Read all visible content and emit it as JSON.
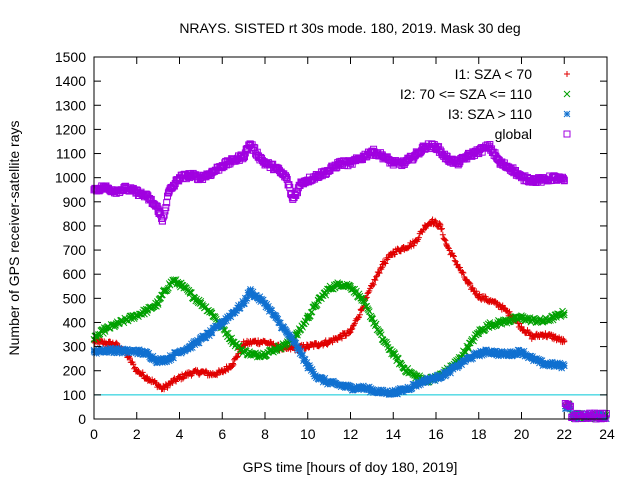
{
  "chart_data": {
    "type": "scatter",
    "title": "NRAYS. SISTED rt 30s mode. 180, 2019. Mask 30 deg",
    "xlabel": "GPS time [hours of doy 180, 2019]",
    "ylabel": "Number of GPS receiver-satellite rays",
    "xlim": [
      0,
      24
    ],
    "ylim": [
      0,
      1500
    ],
    "x_ticks": [
      "0",
      "2",
      "4",
      "6",
      "8",
      "10",
      "12",
      "14",
      "16",
      "18",
      "20",
      "22",
      "24"
    ],
    "y_ticks": [
      "0",
      "100",
      "200",
      "300",
      "400",
      "500",
      "600",
      "700",
      "800",
      "900",
      "1000",
      "1100",
      "1200",
      "1300",
      "1400",
      "1500"
    ],
    "legend_position": "top-right",
    "reference_line": {
      "y": 100,
      "color": "#00c8d8"
    },
    "series": [
      {
        "name": "I1: SZA < 70",
        "marker": "+",
        "color": "#e00000",
        "points": [
          [
            0,
            320
          ],
          [
            1,
            310
          ],
          [
            1.5,
            270
          ],
          [
            2,
            200
          ],
          [
            2.5,
            170
          ],
          [
            3,
            140
          ],
          [
            3.2,
            125
          ],
          [
            3.6,
            150
          ],
          [
            4,
            170
          ],
          [
            4.5,
            190
          ],
          [
            5,
            195
          ],
          [
            5.5,
            185
          ],
          [
            6,
            195
          ],
          [
            6.5,
            230
          ],
          [
            7,
            310
          ],
          [
            7.5,
            320
          ],
          [
            8,
            320
          ],
          [
            8.5,
            300
          ],
          [
            9,
            290
          ],
          [
            9.5,
            295
          ],
          [
            10,
            300
          ],
          [
            10.5,
            310
          ],
          [
            11,
            320
          ],
          [
            11.5,
            340
          ],
          [
            12,
            360
          ],
          [
            12.5,
            450
          ],
          [
            13,
            550
          ],
          [
            13.5,
            640
          ],
          [
            14,
            690
          ],
          [
            14.5,
            710
          ],
          [
            15,
            730
          ],
          [
            15.5,
            800
          ],
          [
            15.8,
            820
          ],
          [
            16.2,
            800
          ],
          [
            16.5,
            720
          ],
          [
            17,
            640
          ],
          [
            17.5,
            560
          ],
          [
            18,
            510
          ],
          [
            18.5,
            490
          ],
          [
            19,
            470
          ],
          [
            19.5,
            430
          ],
          [
            20,
            380
          ],
          [
            20.5,
            340
          ],
          [
            21,
            350
          ],
          [
            21.5,
            340
          ],
          [
            22,
            320
          ]
        ]
      },
      {
        "name": "I2: 70 <= SZA <= 110",
        "marker": "x",
        "color": "#00a000",
        "points": [
          [
            0,
            330
          ],
          [
            0.5,
            370
          ],
          [
            1,
            390
          ],
          [
            1.5,
            410
          ],
          [
            2,
            430
          ],
          [
            2.5,
            450
          ],
          [
            3,
            480
          ],
          [
            3.3,
            530
          ],
          [
            3.7,
            575
          ],
          [
            4,
            560
          ],
          [
            4.5,
            520
          ],
          [
            5,
            480
          ],
          [
            5.5,
            440
          ],
          [
            6,
            380
          ],
          [
            6.5,
            320
          ],
          [
            7,
            280
          ],
          [
            7.5,
            265
          ],
          [
            8,
            270
          ],
          [
            8.5,
            290
          ],
          [
            9,
            310
          ],
          [
            9.5,
            350
          ],
          [
            10,
            420
          ],
          [
            10.5,
            490
          ],
          [
            11,
            540
          ],
          [
            11.5,
            560
          ],
          [
            12,
            550
          ],
          [
            12.5,
            500
          ],
          [
            13,
            420
          ],
          [
            13.5,
            330
          ],
          [
            14,
            270
          ],
          [
            14.5,
            210
          ],
          [
            15,
            180
          ],
          [
            15.5,
            160
          ],
          [
            16,
            170
          ],
          [
            16.5,
            200
          ],
          [
            17,
            240
          ],
          [
            17.5,
            300
          ],
          [
            18,
            360
          ],
          [
            18.5,
            390
          ],
          [
            19,
            400
          ],
          [
            19.5,
            410
          ],
          [
            20,
            420
          ],
          [
            20.5,
            410
          ],
          [
            21,
            405
          ],
          [
            21.5,
            420
          ],
          [
            22,
            440
          ]
        ]
      },
      {
        "name": "I3: SZA > 110",
        "marker": "*",
        "color": "#1070d0",
        "points": [
          [
            0,
            280
          ],
          [
            0.5,
            285
          ],
          [
            1,
            285
          ],
          [
            1.5,
            280
          ],
          [
            2,
            280
          ],
          [
            2.5,
            270
          ],
          [
            3,
            240
          ],
          [
            3.5,
            250
          ],
          [
            4,
            280
          ],
          [
            4.5,
            300
          ],
          [
            5,
            330
          ],
          [
            5.5,
            360
          ],
          [
            6,
            400
          ],
          [
            6.5,
            440
          ],
          [
            7,
            480
          ],
          [
            7.3,
            530
          ],
          [
            7.7,
            500
          ],
          [
            8,
            480
          ],
          [
            8.5,
            420
          ],
          [
            9,
            360
          ],
          [
            9.5,
            300
          ],
          [
            10,
            220
          ],
          [
            10.5,
            170
          ],
          [
            11,
            150
          ],
          [
            11.5,
            140
          ],
          [
            12,
            130
          ],
          [
            12.5,
            130
          ],
          [
            13,
            120
          ],
          [
            13.5,
            110
          ],
          [
            14,
            110
          ],
          [
            14.5,
            120
          ],
          [
            15,
            140
          ],
          [
            15.5,
            160
          ],
          [
            16,
            170
          ],
          [
            16.5,
            190
          ],
          [
            17,
            220
          ],
          [
            17.5,
            250
          ],
          [
            18,
            270
          ],
          [
            18.5,
            280
          ],
          [
            19,
            270
          ],
          [
            19.5,
            270
          ],
          [
            20,
            280
          ],
          [
            20.5,
            250
          ],
          [
            21,
            230
          ],
          [
            21.5,
            225
          ],
          [
            22,
            220
          ]
        ]
      },
      {
        "name": "global",
        "marker": "square",
        "color": "#a000e0",
        "points": [
          [
            0,
            950
          ],
          [
            0.5,
            960
          ],
          [
            1,
            945
          ],
          [
            1.5,
            955
          ],
          [
            2,
            940
          ],
          [
            2.5,
            920
          ],
          [
            3,
            870
          ],
          [
            3.2,
            820
          ],
          [
            3.5,
            940
          ],
          [
            4,
            1000
          ],
          [
            4.5,
            1010
          ],
          [
            5,
            1000
          ],
          [
            5.5,
            1020
          ],
          [
            6,
            1050
          ],
          [
            6.5,
            1070
          ],
          [
            7,
            1090
          ],
          [
            7.3,
            1140
          ],
          [
            7.7,
            1090
          ],
          [
            8,
            1060
          ],
          [
            8.5,
            1040
          ],
          [
            9,
            1000
          ],
          [
            9.3,
            910
          ],
          [
            9.7,
            980
          ],
          [
            10,
            990
          ],
          [
            10.5,
            1010
          ],
          [
            11,
            1030
          ],
          [
            11.5,
            1060
          ],
          [
            12,
            1060
          ],
          [
            12.5,
            1080
          ],
          [
            13,
            1110
          ],
          [
            13.5,
            1090
          ],
          [
            14,
            1060
          ],
          [
            14.5,
            1060
          ],
          [
            15,
            1090
          ],
          [
            15.5,
            1130
          ],
          [
            16,
            1130
          ],
          [
            16.5,
            1080
          ],
          [
            17,
            1060
          ],
          [
            17.5,
            1090
          ],
          [
            18,
            1110
          ],
          [
            18.5,
            1130
          ],
          [
            19,
            1060
          ],
          [
            19.5,
            1040
          ],
          [
            20,
            1000
          ],
          [
            20.5,
            990
          ],
          [
            21,
            990
          ],
          [
            21.5,
            1000
          ],
          [
            22,
            990
          ]
        ]
      }
    ]
  }
}
